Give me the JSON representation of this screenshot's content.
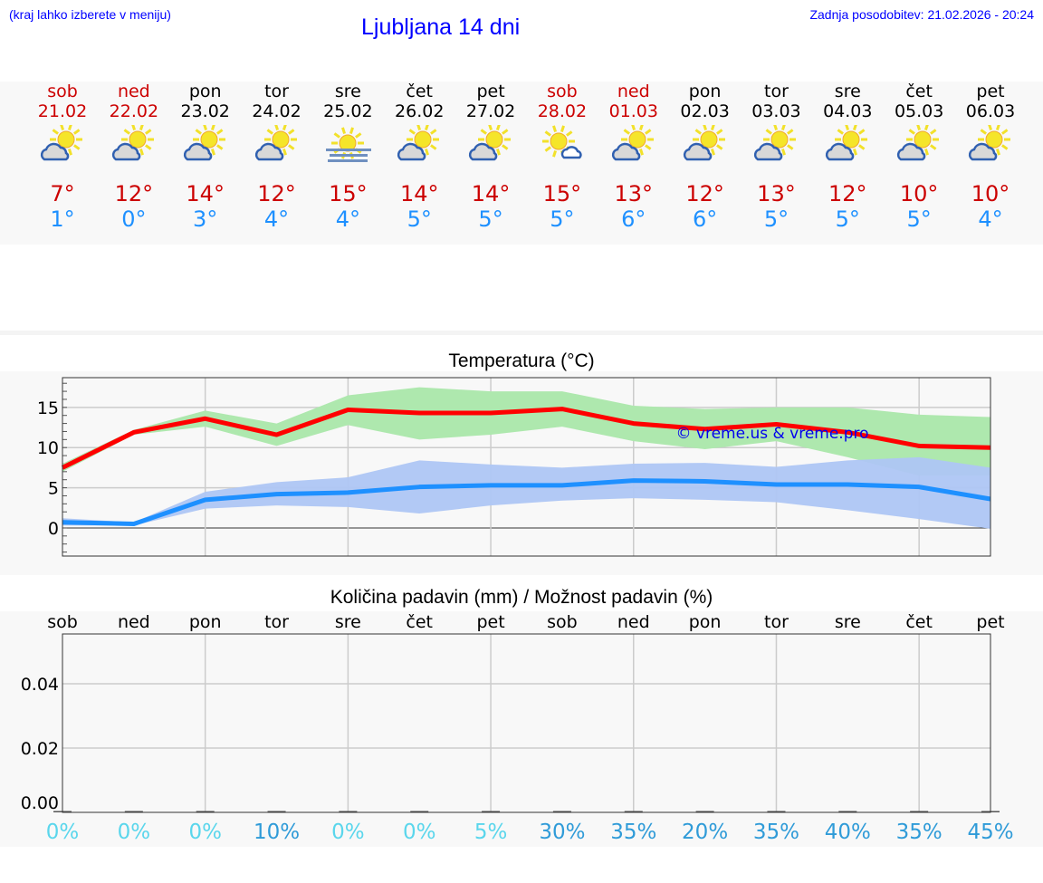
{
  "header": {
    "hint": "(kraj lahko izberete v meniju)",
    "title": "Ljubljana 14 dni",
    "updated": "Zadnja posodobitev: 21.02.2026 - 20:24"
  },
  "days": [
    {
      "name": "sob",
      "date": "21.02",
      "icon": "partly-cloudy-icon",
      "max": "7°",
      "min": "1°",
      "weekend": true
    },
    {
      "name": "ned",
      "date": "22.02",
      "icon": "partly-cloudy-icon",
      "max": "12°",
      "min": "0°",
      "weekend": true
    },
    {
      "name": "pon",
      "date": "23.02",
      "icon": "partly-cloudy-icon",
      "max": "14°",
      "min": "3°",
      "weekend": false
    },
    {
      "name": "tor",
      "date": "24.02",
      "icon": "partly-cloudy-icon",
      "max": "12°",
      "min": "4°",
      "weekend": false
    },
    {
      "name": "sre",
      "date": "25.02",
      "icon": "sun-fog-icon",
      "max": "15°",
      "min": "4°",
      "weekend": false
    },
    {
      "name": "čet",
      "date": "26.02",
      "icon": "partly-cloudy-icon",
      "max": "14°",
      "min": "5°",
      "weekend": false
    },
    {
      "name": "pet",
      "date": "27.02",
      "icon": "partly-cloudy-icon",
      "max": "14°",
      "min": "5°",
      "weekend": false
    },
    {
      "name": "sob",
      "date": "28.02",
      "icon": "mostly-sunny-icon",
      "max": "15°",
      "min": "5°",
      "weekend": true
    },
    {
      "name": "ned",
      "date": "01.03",
      "icon": "partly-cloudy-icon",
      "max": "13°",
      "min": "6°",
      "weekend": true
    },
    {
      "name": "pon",
      "date": "02.03",
      "icon": "partly-cloudy-icon",
      "max": "12°",
      "min": "6°",
      "weekend": false
    },
    {
      "name": "tor",
      "date": "03.03",
      "icon": "partly-cloudy-icon",
      "max": "13°",
      "min": "5°",
      "weekend": false
    },
    {
      "name": "sre",
      "date": "04.03",
      "icon": "partly-cloudy-icon",
      "max": "12°",
      "min": "5°",
      "weekend": false
    },
    {
      "name": "čet",
      "date": "05.03",
      "icon": "partly-cloudy-icon",
      "max": "10°",
      "min": "5°",
      "weekend": false
    },
    {
      "name": "pet",
      "date": "06.03",
      "icon": "partly-cloudy-icon",
      "max": "10°",
      "min": "4°",
      "weekend": false
    }
  ],
  "colors": {
    "max": "#ff0000",
    "min": "#1e90ff",
    "max_band": "#aee8ae",
    "min_band": "#aec6f4",
    "weekend": "#cc0000",
    "pct_low": "#5ad6ec",
    "pct_high": "#2f9bd8"
  },
  "chart_data": [
    {
      "type": "line",
      "title": "Temperatura (°C)",
      "ylim": [
        -3.5,
        18.7
      ],
      "yticks": [
        "15",
        "10",
        "5",
        "0"
      ],
      "ytick_values": [
        15,
        10,
        5,
        0
      ],
      "grid": true,
      "watermark": "© vreme.us & vreme.pro",
      "x": [
        "21.02",
        "22.02",
        "23.02",
        "24.02",
        "25.02",
        "26.02",
        "27.02",
        "28.02",
        "01.03",
        "02.03",
        "03.03",
        "04.03",
        "05.03",
        "06.03"
      ],
      "series": [
        {
          "name": "max",
          "values": [
            7.5,
            11.9,
            13.6,
            11.6,
            14.7,
            14.3,
            14.3,
            14.8,
            13.0,
            12.3,
            12.9,
            11.9,
            10.2,
            10.0
          ],
          "band_high": [
            8,
            12.2,
            14.6,
            13,
            16.5,
            17.5,
            17,
            17,
            15.2,
            14.8,
            15,
            15,
            14.1,
            13.8
          ],
          "band_low": [
            7,
            11.6,
            12.6,
            10.2,
            12.8,
            11,
            11.6,
            12.6,
            10.8,
            9.8,
            10.8,
            8.8,
            6.5,
            6.5
          ]
        },
        {
          "name": "min",
          "values": [
            0.7,
            0.5,
            3.5,
            4.2,
            4.4,
            5.1,
            5.3,
            5.3,
            5.9,
            5.8,
            5.4,
            5.4,
            5.1,
            3.6
          ],
          "band_high": [
            1.2,
            0.7,
            4.5,
            5.7,
            6.3,
            8.4,
            7.9,
            7.5,
            8,
            8.1,
            7.6,
            8.4,
            8.8,
            7.5
          ],
          "band_low": [
            0.3,
            0.3,
            2.4,
            2.8,
            2.6,
            1.8,
            2.8,
            3.4,
            3.7,
            3.5,
            3.2,
            2.2,
            1.1,
            -0.1
          ]
        }
      ]
    },
    {
      "type": "bar",
      "title": "Količina padavin (mm) / Možnost padavin (%)",
      "ylim": [
        0,
        0.0555
      ],
      "yticks": [
        "0.04",
        "0.02",
        "0.00"
      ],
      "ytick_values": [
        0.04,
        0.02,
        0
      ],
      "categories": [
        "sob",
        "ned",
        "pon",
        "tor",
        "sre",
        "čet",
        "pet",
        "sob",
        "ned",
        "pon",
        "tor",
        "sre",
        "čet",
        "pet"
      ],
      "values": [
        0,
        0,
        0,
        0,
        0,
        0,
        0,
        0,
        0,
        0,
        0,
        0,
        0,
        0
      ],
      "probability": [
        "0%",
        "0%",
        "0%",
        "10%",
        "0%",
        "0%",
        "5%",
        "30%",
        "35%",
        "20%",
        "35%",
        "40%",
        "35%",
        "45%"
      ]
    }
  ]
}
